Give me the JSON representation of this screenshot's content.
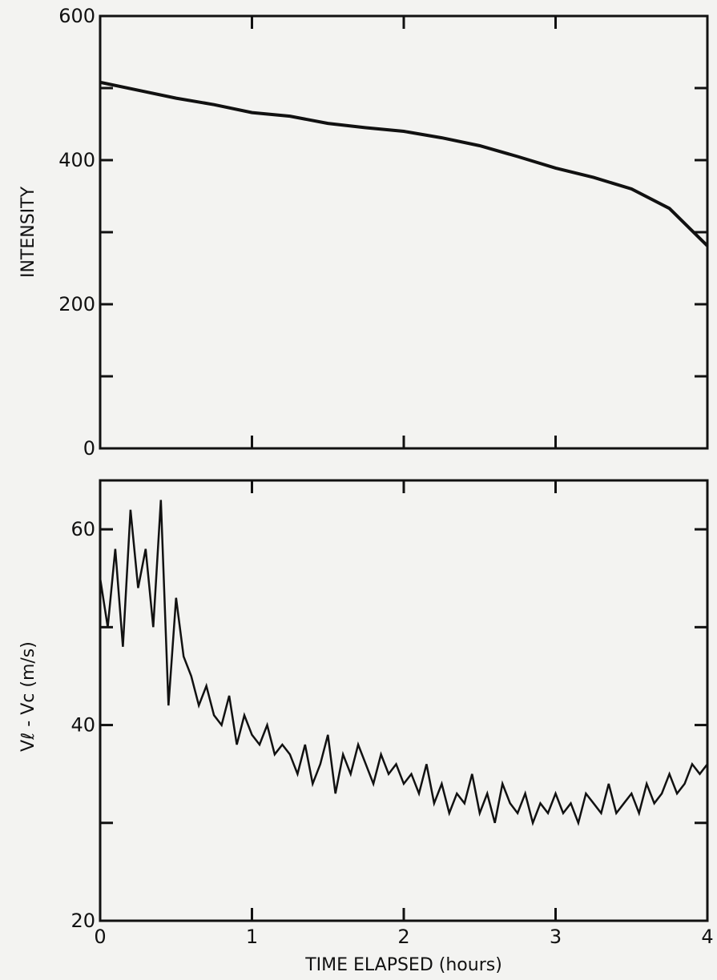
{
  "chart_data": [
    {
      "type": "line",
      "ylabel": "INTENSITY",
      "xlim": [
        0,
        4
      ],
      "ylim": [
        0,
        600
      ],
      "x_ticks": [
        0,
        1,
        2,
        3,
        4
      ],
      "y_ticks": [
        0,
        100,
        200,
        300,
        400,
        500,
        600
      ],
      "y_tick_labels": [
        "0",
        "",
        "200",
        "",
        "400",
        "",
        "600"
      ],
      "grid": false,
      "series": [
        {
          "x": [
            0.0,
            0.25,
            0.5,
            0.75,
            1.0,
            1.25,
            1.5,
            1.75,
            2.0,
            2.25,
            2.5,
            2.75,
            3.0,
            3.25,
            3.5,
            3.75,
            4.0
          ],
          "y": [
            508,
            497,
            486,
            477,
            466,
            461,
            451,
            445,
            440,
            431,
            420,
            405,
            389,
            376,
            360,
            333,
            281
          ]
        }
      ]
    },
    {
      "type": "line",
      "ylabel": "Vℓ - Vc (m/s)",
      "xlabel": "TIME ELAPSED (hours)",
      "xlim": [
        0,
        4
      ],
      "ylim": [
        20,
        65
      ],
      "x_ticks": [
        0,
        1,
        2,
        3,
        4
      ],
      "x_tick_labels": [
        "0",
        "1",
        "2",
        "3",
        "4"
      ],
      "y_ticks": [
        20,
        30,
        40,
        50,
        60
      ],
      "y_tick_labels": [
        "20",
        "",
        "40",
        "",
        "60"
      ],
      "grid": false,
      "series": [
        {
          "x": [
            0.0,
            0.05,
            0.1,
            0.15,
            0.2,
            0.25,
            0.3,
            0.35,
            0.4,
            0.45,
            0.5,
            0.55,
            0.6,
            0.65,
            0.7,
            0.75,
            0.8,
            0.85,
            0.9,
            0.95,
            1.0,
            1.05,
            1.1,
            1.15,
            1.2,
            1.25,
            1.3,
            1.35,
            1.4,
            1.45,
            1.5,
            1.55,
            1.6,
            1.65,
            1.7,
            1.75,
            1.8,
            1.85,
            1.9,
            1.95,
            2.0,
            2.05,
            2.1,
            2.15,
            2.2,
            2.25,
            2.3,
            2.35,
            2.4,
            2.45,
            2.5,
            2.55,
            2.6,
            2.65,
            2.7,
            2.75,
            2.8,
            2.85,
            2.9,
            2.95,
            3.0,
            3.05,
            3.1,
            3.15,
            3.2,
            3.25,
            3.3,
            3.35,
            3.4,
            3.45,
            3.5,
            3.55,
            3.6,
            3.65,
            3.7,
            3.75,
            3.8,
            3.85,
            3.9,
            3.95,
            4.0
          ],
          "y": [
            55,
            50,
            58,
            48,
            62,
            54,
            58,
            50,
            63,
            42,
            53,
            47,
            45,
            42,
            44,
            41,
            40,
            43,
            38,
            41,
            39,
            38,
            40,
            37,
            38,
            37,
            35,
            38,
            34,
            36,
            39,
            33,
            37,
            35,
            38,
            36,
            34,
            37,
            35,
            36,
            34,
            35,
            33,
            36,
            32,
            34,
            31,
            33,
            32,
            35,
            31,
            33,
            30,
            34,
            32,
            31,
            33,
            30,
            32,
            31,
            33,
            31,
            32,
            30,
            33,
            32,
            31,
            34,
            31,
            32,
            33,
            31,
            34,
            32,
            33,
            35,
            33,
            34,
            36,
            35,
            36
          ]
        }
      ]
    }
  ]
}
